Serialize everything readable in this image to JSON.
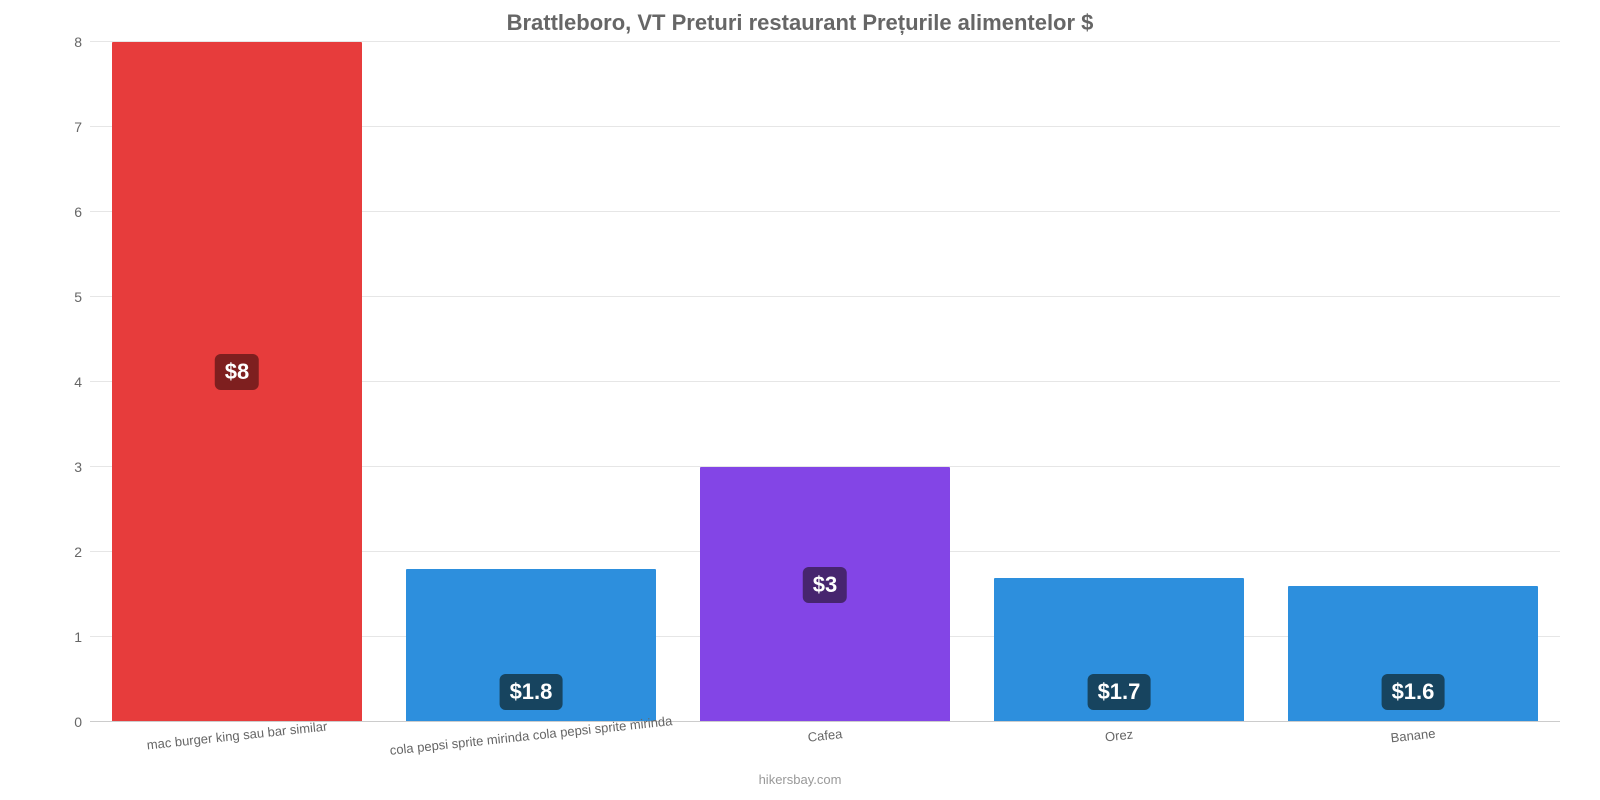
{
  "chart": {
    "type": "bar",
    "title": "Brattleboro, VT Preturi restaurant Prețurile alimentelor $",
    "title_color": "#666666",
    "title_fontsize": 22,
    "background_color": "#ffffff",
    "grid_color": "#e6e6e6",
    "axis_tick_color": "#666666",
    "ylim": [
      0,
      8
    ],
    "yticks": [
      0,
      1,
      2,
      3,
      4,
      5,
      6,
      7,
      8
    ],
    "bar_width_ratio": 0.85,
    "categories": [
      "mac burger king sau bar similar",
      "cola pepsi sprite mirinda cola pepsi sprite mirinda",
      "Cafea",
      "Orez",
      "Banane"
    ],
    "values": [
      8,
      1.8,
      3,
      1.7,
      1.6
    ],
    "display_labels": [
      "$8",
      "$1.8",
      "$3",
      "$1.7",
      "$1.6"
    ],
    "bar_colors": [
      "#e73c3c",
      "#2d8fdd",
      "#8345e6",
      "#2d8fdd",
      "#2d8fdd"
    ],
    "label_badge_colors": [
      "#7e1f1f",
      "#17445f",
      "#47256f",
      "#17445f",
      "#17445f"
    ],
    "label_text_color": "#ffffff",
    "label_fontsize": 22,
    "xlabel_fontsize": 13,
    "xlabel_color": "#666666",
    "xlabel_rotate_deg": -6,
    "footer": "hikersbay.com",
    "footer_color": "#999999"
  }
}
